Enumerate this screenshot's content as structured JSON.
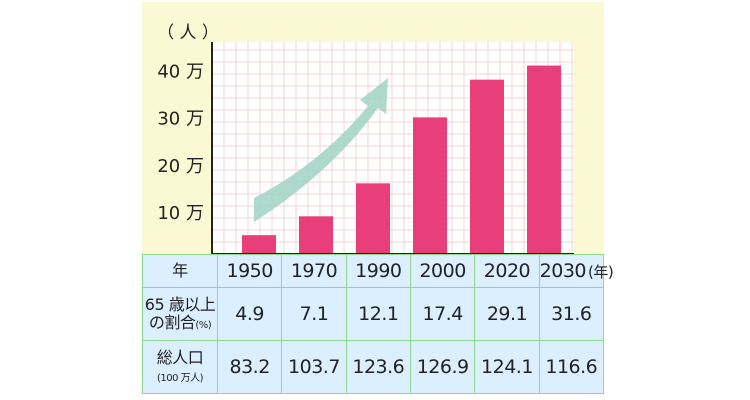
{
  "chart_data": {
    "type": "bar",
    "categories": [
      "1950",
      "1970",
      "1990",
      "2000",
      "2020",
      "2030"
    ],
    "values": [
      4000,
      8000,
      15000,
      29000,
      37000,
      40000
    ],
    "ylabel": "（ 人 ）",
    "ylim": [
      0,
      45000
    ],
    "yticks": [
      {
        "value": 10000,
        "label": "10 万"
      },
      {
        "value": 20000,
        "label": "20 万"
      },
      {
        "value": 30000,
        "label": "30 万"
      },
      {
        "value": 40000,
        "label": "40 万"
      }
    ],
    "grid": true,
    "bar_color": "#e83e7a",
    "arrow_color": "#9fd3c3",
    "background_color": "#fbf9d3"
  },
  "table": {
    "year_label": "年",
    "year_unit": "(年)",
    "elder_label_line1": "65 歳以上",
    "elder_label_line2": "の割合",
    "elder_unit": "(%)",
    "elder_values": [
      "4.9",
      "7.1",
      "12.1",
      "17.4",
      "29.1",
      "31.6"
    ],
    "pop_label_line1": "総人口",
    "pop_unit": "(100 万人)",
    "pop_values": [
      "83.2",
      "103.7",
      "123.6",
      "126.9",
      "124.1",
      "116.6"
    ]
  }
}
